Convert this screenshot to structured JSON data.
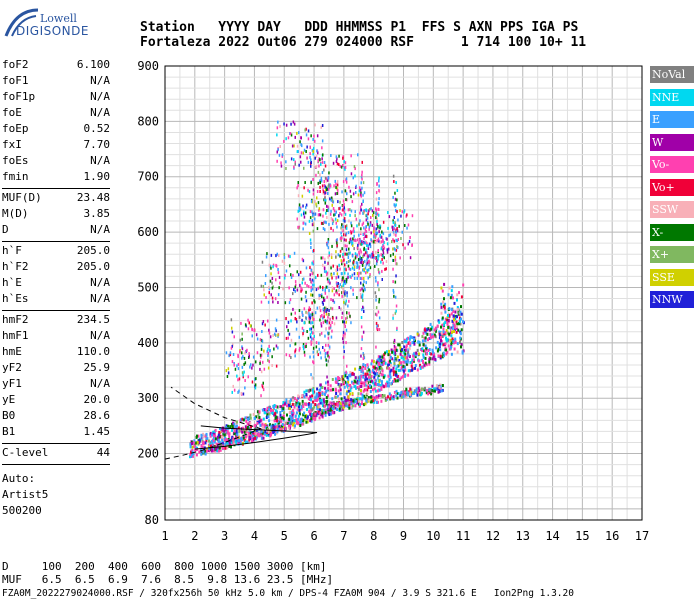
{
  "logo": {
    "line1": "Lowell",
    "line2": "DIGISONDE"
  },
  "header": {
    "line1": "Station   YYYY DAY   DDD HHMMSS P1  FFS S AXN PPS IGA PS",
    "line2": "Fortaleza 2022 Out06 279 024000 RSF      1 714 100 10+ 11"
  },
  "params_groups": [
    [
      [
        "foF2",
        "6.100"
      ],
      [
        "foF1",
        "N/A"
      ],
      [
        "foF1p",
        "N/A"
      ],
      [
        "foE",
        "N/A"
      ],
      [
        "foEp",
        "0.52"
      ],
      [
        "fxI",
        "7.70"
      ],
      [
        "foEs",
        "N/A"
      ],
      [
        "fmin",
        "1.90"
      ]
    ],
    [
      [
        "MUF(D)",
        "23.48"
      ],
      [
        "M(D)",
        "3.85"
      ],
      [
        "D",
        "N/A"
      ]
    ],
    [
      [
        "h`F",
        "205.0"
      ],
      [
        "h`F2",
        "205.0"
      ],
      [
        "h`E",
        "N/A"
      ],
      [
        "h`Es",
        "N/A"
      ]
    ],
    [
      [
        "hmF2",
        "234.5"
      ],
      [
        "hmF1",
        "N/A"
      ],
      [
        "hmE",
        "110.0"
      ],
      [
        "yF2",
        "25.9"
      ],
      [
        "yF1",
        "N/A"
      ],
      [
        "yE",
        "20.0"
      ],
      [
        "B0",
        "28.6"
      ],
      [
        "B1",
        "1.45"
      ]
    ],
    [
      [
        "C-level",
        "44"
      ]
    ]
  ],
  "auto": [
    "Auto:",
    "Artist5",
    "500200"
  ],
  "legend": [
    {
      "label": "NoVal",
      "color": "#808080"
    },
    {
      "label": "NNE",
      "color": "#00d8f0"
    },
    {
      "label": "E",
      "color": "#3aa0ff"
    },
    {
      "label": "W",
      "color": "#a000a8"
    },
    {
      "label": "Vo-",
      "color": "#ff40b0"
    },
    {
      "label": "Vo+",
      "color": "#f00038"
    },
    {
      "label": "SSW",
      "color": "#f8b0b8"
    },
    {
      "label": "X-",
      "color": "#007800"
    },
    {
      "label": "X+",
      "color": "#80b860"
    },
    {
      "label": "SSE",
      "color": "#d0d000"
    },
    {
      "label": "NNW",
      "color": "#2020d8"
    }
  ],
  "bottom": {
    "line1": "D     100  200  400  600  800 1000 1500 3000 [km]",
    "line2": "MUF   6.5  6.5  6.9  7.6  8.5  9.8 13.6 23.5 [MHz]"
  },
  "footer": "FZA0M_2022279024000.RSF / 320fx256h 50 kHz 5.0 km / DPS-4 FZA0M 904 / 3.9 S 321.6 E   Ion2Png 1.3.20",
  "chart_data": {
    "type": "scatter",
    "xlabel": "",
    "ylabel": "",
    "xlim": [
      1,
      17
    ],
    "ylim": [
      80,
      900
    ],
    "xticks": [
      1,
      2,
      3,
      4,
      5,
      6,
      7,
      8,
      9,
      10,
      11,
      12,
      13,
      14,
      15,
      16,
      17
    ],
    "yticks": [
      80,
      200,
      300,
      400,
      500,
      600,
      700,
      800,
      900
    ],
    "grid": true,
    "traces": [
      {
        "name": "O-trace",
        "values": [
          [
            1.8,
            207
          ],
          [
            2.5,
            215
          ],
          [
            3.0,
            225
          ],
          [
            3.5,
            235
          ],
          [
            4.0,
            245
          ],
          [
            4.5,
            255
          ],
          [
            5.0,
            265
          ],
          [
            5.5,
            275
          ],
          [
            6.0,
            285
          ],
          [
            6.5,
            295
          ],
          [
            7.0,
            305
          ],
          [
            7.5,
            318
          ],
          [
            8.0,
            330
          ],
          [
            8.5,
            345
          ],
          [
            9.0,
            360
          ],
          [
            9.5,
            375
          ],
          [
            10.0,
            390
          ],
          [
            10.5,
            405
          ],
          [
            10.9,
            420
          ]
        ]
      },
      {
        "name": "X-trace",
        "values": [
          [
            2.5,
            210
          ],
          [
            3.0,
            218
          ],
          [
            4.0,
            232
          ],
          [
            5.0,
            250
          ],
          [
            6.0,
            270
          ],
          [
            7.0,
            290
          ],
          [
            8.0,
            300
          ],
          [
            9.0,
            312
          ],
          [
            10.0,
            318
          ],
          [
            10.3,
            322
          ]
        ]
      },
      {
        "name": "spread",
        "values": [
          [
            5.8,
            420
          ],
          [
            6.5,
            480
          ],
          [
            7.0,
            520
          ],
          [
            7.5,
            560
          ],
          [
            8.0,
            580
          ],
          [
            8.5,
            600
          ],
          [
            6.2,
            650
          ],
          [
            5.0,
            520
          ],
          [
            4.0,
            400
          ],
          [
            3.5,
            350
          ],
          [
            6.8,
            700
          ],
          [
            5.5,
            760
          ],
          [
            7.2,
            600
          ]
        ]
      }
    ],
    "profile_solid": [
      [
        2.0,
        208
      ],
      [
        3.0,
        213
      ],
      [
        4.0,
        220
      ],
      [
        5.0,
        228
      ],
      [
        5.8,
        235
      ],
      [
        6.1,
        238
      ],
      [
        4.5,
        242
      ],
      [
        3.0,
        246
      ],
      [
        2.2,
        250
      ]
    ],
    "profile_dashed": [
      [
        1.0,
        190
      ],
      [
        1.6,
        197
      ],
      [
        2.2,
        205
      ],
      [
        3.0,
        220
      ],
      [
        3.6,
        232
      ],
      [
        4.2,
        245
      ],
      [
        3.0,
        265
      ],
      [
        2.0,
        290
      ],
      [
        1.2,
        320
      ]
    ]
  }
}
